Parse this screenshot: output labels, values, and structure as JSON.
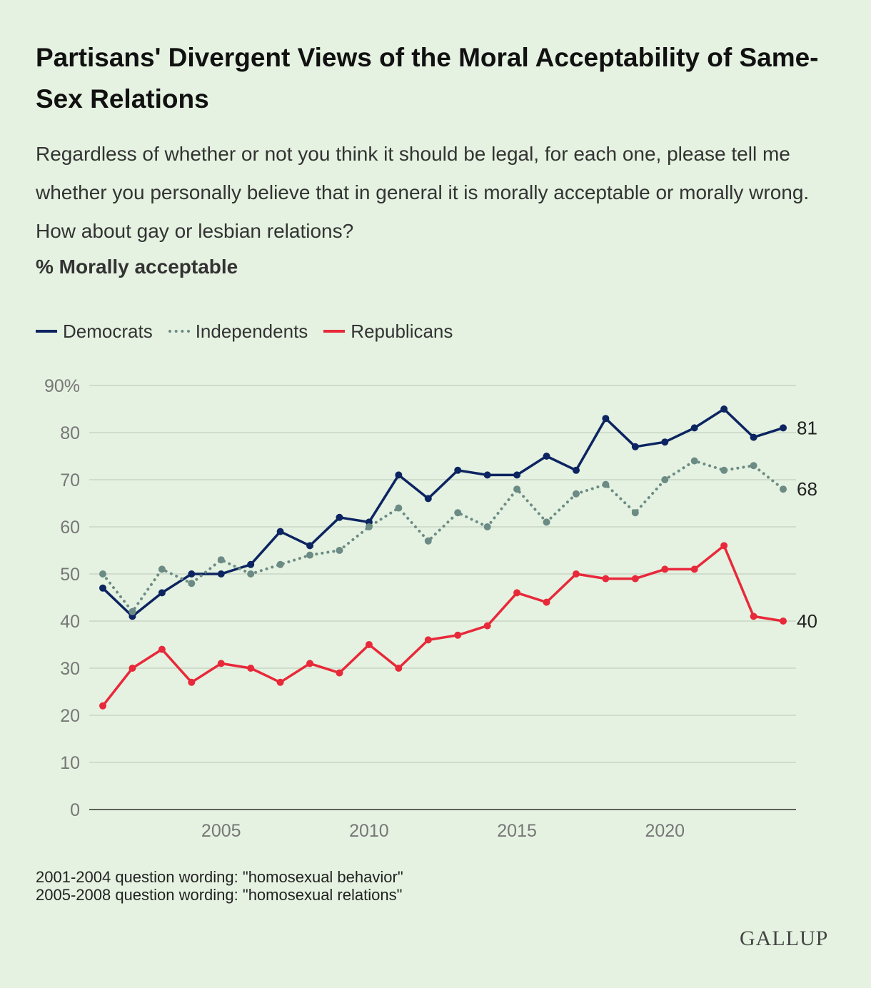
{
  "title": "Partisans' Divergent Views of the Moral Acceptability of Same-Sex Relations",
  "subtitle": "Regardless of whether or not you think it should be legal, for each one, please tell me whether you personally believe that in general it is morally acceptable or morally wrong. How about gay or lesbian relations?",
  "measure_label": "% Morally acceptable",
  "legend": [
    {
      "name": "Democrats",
      "style": "solid",
      "color": "#0c2461"
    },
    {
      "name": "Independents",
      "style": "dotted",
      "color": "#6c8b85"
    },
    {
      "name": "Republicans",
      "style": "solid",
      "color": "#e8293a"
    }
  ],
  "notes": [
    "2001-2004 question wording: \"homosexual behavior\"",
    "2005-2008 question wording: \"homosexual relations\""
  ],
  "logo": "GALLUP",
  "chart_data": {
    "type": "line",
    "x": [
      2001,
      2002,
      2003,
      2004,
      2005,
      2006,
      2007,
      2008,
      2009,
      2010,
      2011,
      2012,
      2013,
      2014,
      2015,
      2016,
      2017,
      2018,
      2019,
      2020,
      2021,
      2022,
      2023,
      2024
    ],
    "series": [
      {
        "name": "Democrats",
        "color": "#0c2461",
        "style": "solid",
        "end_label": "81",
        "values": [
          47,
          41,
          46,
          50,
          50,
          52,
          59,
          56,
          62,
          61,
          71,
          66,
          72,
          71,
          71,
          75,
          72,
          83,
          77,
          78,
          81,
          85,
          79,
          81
        ]
      },
      {
        "name": "Independents",
        "color": "#6c8b85",
        "style": "dotted",
        "end_label": "68",
        "values": [
          50,
          42,
          51,
          48,
          53,
          50,
          52,
          54,
          55,
          60,
          64,
          57,
          63,
          60,
          68,
          61,
          67,
          69,
          63,
          70,
          74,
          72,
          73,
          68
        ]
      },
      {
        "name": "Republicans",
        "color": "#e8293a",
        "style": "solid",
        "end_label": "40",
        "values": [
          22,
          30,
          34,
          27,
          31,
          30,
          27,
          31,
          29,
          35,
          30,
          36,
          37,
          39,
          46,
          44,
          50,
          49,
          49,
          51,
          51,
          56,
          41,
          40
        ]
      }
    ],
    "xticks": [
      2005,
      2010,
      2015,
      2020
    ],
    "yticks": [
      0,
      10,
      20,
      30,
      40,
      50,
      60,
      70,
      80,
      90
    ],
    "ytick_labels": [
      "0",
      "10",
      "20",
      "30",
      "40",
      "50",
      "60",
      "70",
      "80",
      "90%"
    ],
    "ylim": [
      0,
      90
    ],
    "xlim": [
      2001,
      2024
    ],
    "grid": true,
    "legend_position": "top-left"
  }
}
